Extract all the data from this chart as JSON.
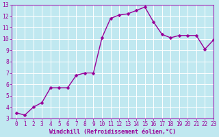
{
  "x": [
    0,
    1,
    2,
    3,
    4,
    5,
    6,
    7,
    8,
    9,
    10,
    11,
    12,
    13,
    14,
    15,
    16,
    17,
    18,
    19,
    20,
    21,
    22,
    23
  ],
  "y": [
    3.5,
    3.3,
    4.0,
    4.4,
    5.7,
    5.7,
    5.7,
    6.8,
    7.0,
    7.0,
    10.1,
    11.8,
    12.1,
    12.2,
    12.5,
    12.8,
    11.5,
    10.4,
    10.1,
    10.3,
    10.3,
    10.3,
    9.1,
    9.9
  ],
  "line_color": "#990099",
  "marker_color": "#990099",
  "background_color": "#c0e8f0",
  "grid_color": "#ffffff",
  "xlabel": "Windchill (Refroidissement éolien,°C)",
  "xlabel_color": "#990099",
  "tick_color": "#990099",
  "border_color": "#9900aa",
  "ylim": [
    3,
    13
  ],
  "xlim": [
    -0.5,
    23
  ],
  "yticks": [
    3,
    4,
    5,
    6,
    7,
    8,
    9,
    10,
    11,
    12,
    13
  ],
  "xticks": [
    0,
    1,
    2,
    3,
    4,
    5,
    6,
    7,
    8,
    9,
    10,
    11,
    12,
    13,
    14,
    15,
    16,
    17,
    18,
    19,
    20,
    21,
    22,
    23
  ],
  "marker_size": 2.5,
  "line_width": 1.0,
  "tick_fontsize": 5.5,
  "xlabel_fontsize": 6.0
}
